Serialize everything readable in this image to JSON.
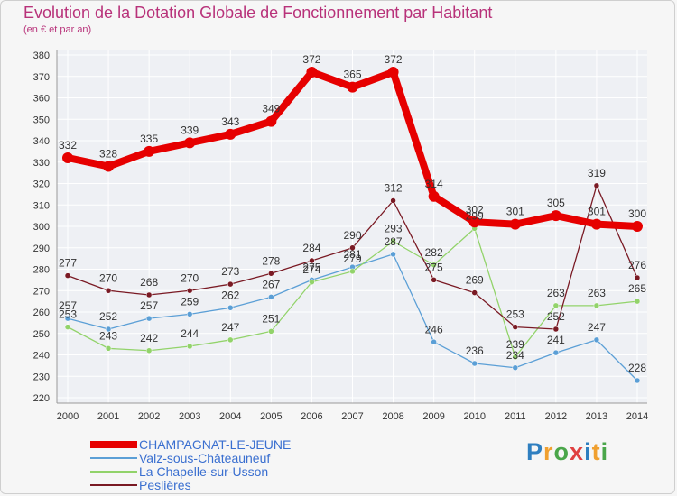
{
  "header": {
    "title": "Evolution de la Dotation Globale de Fonctionnement par Habitant",
    "subtitle": "(en € et par an)"
  },
  "logo": {
    "text": "Proxiti",
    "letters": [
      {
        "ch": "P",
        "color": "#2f7fc0"
      },
      {
        "ch": "r",
        "color": "#f0a030"
      },
      {
        "ch": "o",
        "color": "#4aa64a"
      },
      {
        "ch": "x",
        "color": "#e04040"
      },
      {
        "ch": "i",
        "color": "#2f7fc0"
      },
      {
        "ch": "t",
        "color": "#f0a030"
      },
      {
        "ch": "i",
        "color": "#4aa64a"
      }
    ]
  },
  "chart_data": {
    "type": "line",
    "title": "Evolution de la Dotation Globale de Fonctionnement par Habitant",
    "subtitle": "(en € et par an)",
    "x": [
      "2000",
      "2001",
      "2002",
      "2003",
      "2004",
      "2005",
      "2006",
      "2007",
      "2008",
      "2009",
      "2010",
      "2011",
      "2012",
      "2013",
      "2014"
    ],
    "ylim": [
      220,
      380
    ],
    "yticks": [
      220,
      230,
      240,
      250,
      260,
      270,
      280,
      290,
      300,
      310,
      320,
      330,
      340,
      350,
      360,
      370,
      380
    ],
    "grid": true,
    "legend_position": "bottom-left",
    "series": [
      {
        "name": "CHAMPAGNAT-LE-JEUNE",
        "color": "#e60000",
        "values": [
          332,
          328,
          335,
          339,
          343,
          349,
          372,
          365,
          372,
          314,
          302,
          301,
          305,
          301,
          300
        ]
      },
      {
        "name": "Valz-sous-Châteauneuf",
        "color": "#5b9fd6",
        "values": [
          257,
          252,
          257,
          259,
          262,
          267,
          275,
          281,
          287,
          246,
          236,
          234,
          241,
          247,
          228
        ]
      },
      {
        "name": "La Chapelle-sur-Usson",
        "color": "#92d36a",
        "values": [
          253,
          243,
          242,
          244,
          247,
          251,
          274,
          279,
          293,
          282,
          299,
          239,
          263,
          263,
          265
        ]
      },
      {
        "name": "Peslières",
        "color": "#7a1a24",
        "values": [
          277,
          270,
          268,
          270,
          273,
          278,
          284,
          290,
          312,
          275,
          269,
          253,
          252,
          319,
          276
        ]
      }
    ],
    "data_labels": [
      {
        "series": 0,
        "labels": [
          "332",
          "328",
          "335",
          "339",
          "343",
          "349",
          "372",
          "365",
          "372",
          "314",
          "302",
          "301",
          "305",
          "301",
          "300"
        ]
      },
      {
        "series": 1,
        "labels": [
          "257",
          "252",
          "257",
          "259",
          "262",
          "267",
          "275",
          "281",
          "287",
          "246",
          "236",
          "234",
          "241",
          "247",
          "228"
        ]
      },
      {
        "series": 2,
        "labels": [
          "253",
          "243",
          "242",
          "244",
          "247",
          "251",
          "274",
          "279",
          "293",
          "282",
          "299",
          "239",
          "263",
          "263",
          "265"
        ]
      },
      {
        "series": 3,
        "labels": [
          "277",
          "270",
          "268",
          "270",
          "273",
          "278",
          "284",
          "290",
          "312",
          "275",
          "269",
          "253",
          "252",
          "319",
          "276"
        ]
      }
    ]
  }
}
